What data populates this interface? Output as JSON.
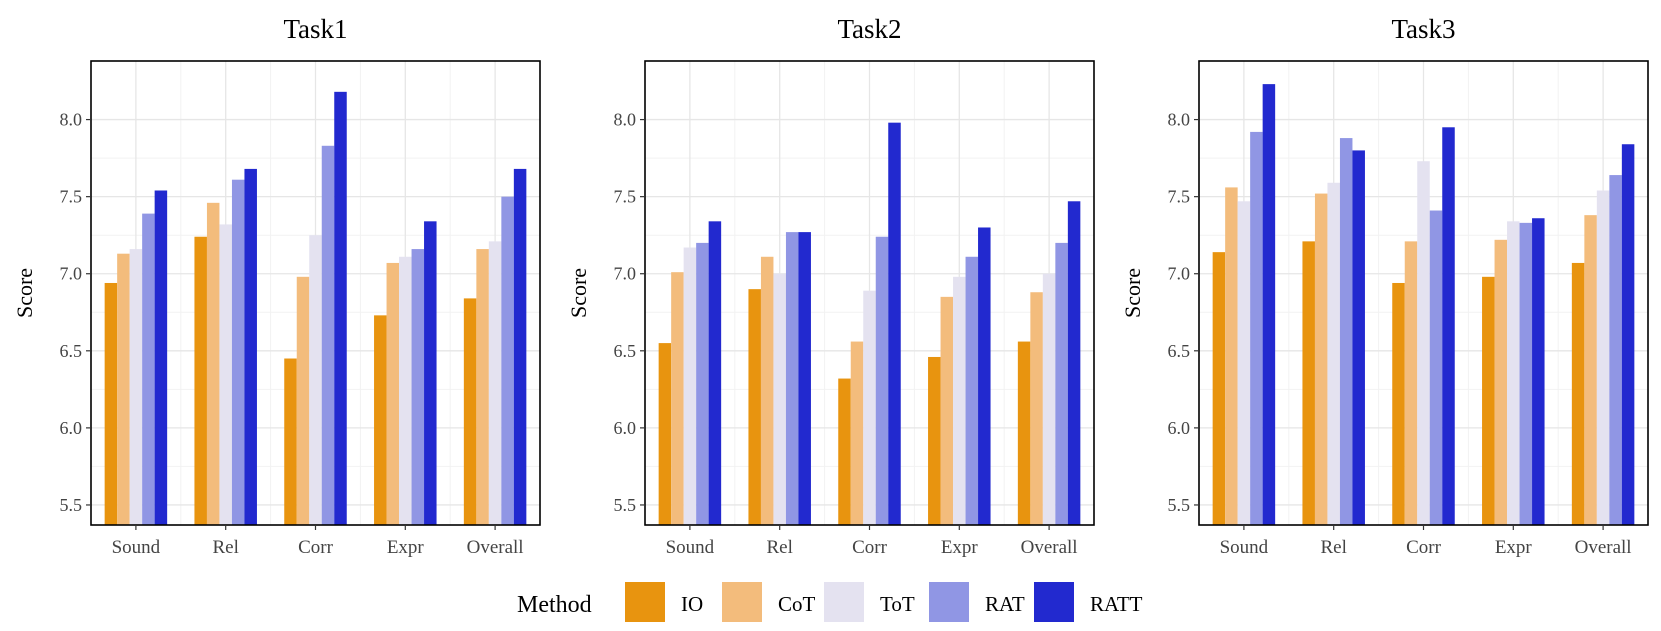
{
  "chart_data": [
    {
      "type": "bar",
      "title": "Task1",
      "ylabel": "Score",
      "xlabel": "",
      "categories": [
        "Sound",
        "Rel",
        "Corr",
        "Expr",
        "Overall"
      ],
      "ylim": [
        5.37,
        8.38
      ],
      "yticks": [
        "5.5",
        "6.0",
        "6.5",
        "7.0",
        "7.5",
        "8.0"
      ],
      "grid": true,
      "series": [
        {
          "name": "IO",
          "values": [
            6.94,
            7.24,
            6.45,
            6.73,
            6.84
          ]
        },
        {
          "name": "CoT",
          "values": [
            7.13,
            7.46,
            6.98,
            7.07,
            7.16
          ]
        },
        {
          "name": "ToT",
          "values": [
            7.16,
            7.32,
            7.25,
            7.11,
            7.21
          ]
        },
        {
          "name": "RAT",
          "values": [
            7.39,
            7.61,
            7.83,
            7.16,
            7.5
          ]
        },
        {
          "name": "RATT",
          "values": [
            7.54,
            7.68,
            8.18,
            7.34,
            7.68
          ]
        }
      ]
    },
    {
      "type": "bar",
      "title": "Task2",
      "ylabel": "Score",
      "xlabel": "",
      "categories": [
        "Sound",
        "Rel",
        "Corr",
        "Expr",
        "Overall"
      ],
      "ylim": [
        5.37,
        8.38
      ],
      "yticks": [
        "5.5",
        "6.0",
        "6.5",
        "7.0",
        "7.5",
        "8.0"
      ],
      "grid": true,
      "series": [
        {
          "name": "IO",
          "values": [
            6.55,
            6.9,
            6.32,
            6.46,
            6.56
          ]
        },
        {
          "name": "CoT",
          "values": [
            7.01,
            7.11,
            6.56,
            6.85,
            6.88
          ]
        },
        {
          "name": "ToT",
          "values": [
            7.17,
            7.0,
            6.89,
            6.98,
            7.0
          ]
        },
        {
          "name": "RAT",
          "values": [
            7.2,
            7.27,
            7.24,
            7.11,
            7.2
          ]
        },
        {
          "name": "RATT",
          "values": [
            7.34,
            7.27,
            7.98,
            7.3,
            7.47
          ]
        }
      ]
    },
    {
      "type": "bar",
      "title": "Task3",
      "ylabel": "Score",
      "xlabel": "",
      "categories": [
        "Sound",
        "Rel",
        "Corr",
        "Expr",
        "Overall"
      ],
      "ylim": [
        5.37,
        8.38
      ],
      "yticks": [
        "5.5",
        "6.0",
        "6.5",
        "7.0",
        "7.5",
        "8.0"
      ],
      "grid": true,
      "series": [
        {
          "name": "IO",
          "values": [
            7.14,
            7.21,
            6.94,
            6.98,
            7.07
          ]
        },
        {
          "name": "CoT",
          "values": [
            7.56,
            7.52,
            7.21,
            7.22,
            7.38
          ]
        },
        {
          "name": "ToT",
          "values": [
            7.47,
            7.59,
            7.73,
            7.34,
            7.54
          ]
        },
        {
          "name": "RAT",
          "values": [
            7.92,
            7.88,
            7.41,
            7.33,
            7.64
          ]
        },
        {
          "name": "RATT",
          "values": [
            8.23,
            7.8,
            7.95,
            7.36,
            7.84
          ]
        }
      ]
    }
  ],
  "legend": {
    "title": "Method",
    "position": "bottom",
    "items": [
      {
        "label": "IO",
        "color": "#E8940F"
      },
      {
        "label": "CoT",
        "color": "#F3BC7C"
      },
      {
        "label": "ToT",
        "color": "#E4E2F0"
      },
      {
        "label": "RAT",
        "color": "#9096E4"
      },
      {
        "label": "RATT",
        "color": "#2229CF"
      }
    ]
  }
}
